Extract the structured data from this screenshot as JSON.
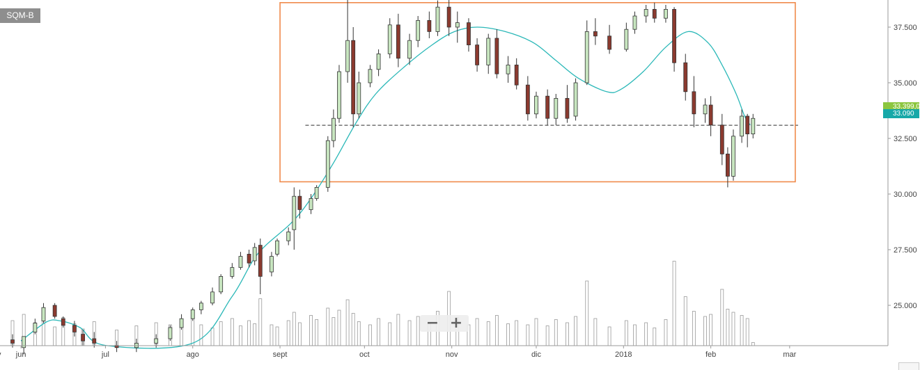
{
  "symbol": "SQM-B",
  "zoom": {
    "minus_label": "−",
    "plus_label": "+"
  },
  "price_tags": [
    {
      "label": "33.399,0",
      "color": "#8cc63f"
    },
    {
      "label": "33.090",
      "color": "#17a8a8"
    }
  ],
  "chart_data": {
    "type": "candlestick",
    "title": "",
    "x_ticks": [
      "jun",
      "jul",
      "ago",
      "sept",
      "oct",
      "nov",
      "dic",
      "2018",
      "feb",
      "mar"
    ],
    "x_range": [
      "2017-05-29",
      "2018-03-05"
    ],
    "y_ticks": [
      "37.500",
      "35.000",
      "32.500",
      "30.000",
      "27.500",
      "25.000"
    ],
    "y_tick_values": [
      37500,
      35000,
      32500,
      30000,
      27500,
      25000
    ],
    "ylim": [
      23000,
      38800
    ],
    "scale": "linear",
    "grid": false,
    "colors": {
      "up": "#c8e6c0",
      "down": "#8b3a2f",
      "wick": "#333333",
      "ma": "#2bb8b8",
      "box": "#f08a4b",
      "volume": "#999999"
    },
    "ma_line": [
      [
        "2017-06-01",
        23400
      ],
      [
        "2017-06-10",
        24250
      ],
      [
        "2017-06-15",
        24300
      ],
      [
        "2017-06-22",
        24000
      ],
      [
        "2017-07-01",
        23200
      ],
      [
        "2017-08-01",
        23300
      ],
      [
        "2017-08-15",
        25400
      ],
      [
        "2017-08-24",
        27300
      ],
      [
        "2017-09-05",
        28700
      ],
      [
        "2017-09-12",
        29800
      ],
      [
        "2017-09-20",
        31400
      ],
      [
        "2017-09-28",
        33200
      ],
      [
        "2017-10-05",
        34500
      ],
      [
        "2017-10-15",
        35700
      ],
      [
        "2017-10-25",
        36700
      ],
      [
        "2017-11-02",
        37300
      ],
      [
        "2017-11-10",
        37500
      ],
      [
        "2017-11-20",
        37300
      ],
      [
        "2017-11-30",
        36800
      ],
      [
        "2017-12-08",
        36000
      ],
      [
        "2017-12-16",
        35200
      ],
      [
        "2017-12-26",
        34600
      ],
      [
        "2017-12-31",
        34700
      ],
      [
        "2018-01-08",
        35500
      ],
      [
        "2018-01-16",
        36600
      ],
      [
        "2018-01-24",
        37300
      ],
      [
        "2018-01-31",
        36800
      ],
      [
        "2018-02-05",
        35800
      ],
      [
        "2018-02-10",
        34500
      ],
      [
        "2018-02-13",
        33500
      ],
      [
        "2018-02-15",
        33100
      ]
    ],
    "candles": [
      [
        "2017-05-29",
        23450,
        23700,
        23100,
        23300
      ],
      [
        "2017-06-02",
        23100,
        23600,
        22800,
        23600
      ],
      [
        "2017-06-06",
        23800,
        24400,
        23700,
        24200
      ],
      [
        "2017-06-09",
        24300,
        25100,
        24200,
        24900
      ],
      [
        "2017-06-13",
        25000,
        25100,
        24400,
        24500
      ],
      [
        "2017-06-16",
        24400,
        24500,
        24000,
        24100
      ],
      [
        "2017-06-20",
        24100,
        24300,
        23600,
        23800
      ],
      [
        "2017-06-23",
        23700,
        23900,
        23200,
        23400
      ],
      [
        "2017-06-27",
        23500,
        23800,
        23100,
        23300
      ],
      [
        "2017-07-05",
        23200,
        23400,
        22900,
        23100
      ],
      [
        "2017-07-12",
        23100,
        23500,
        22900,
        23300
      ],
      [
        "2017-07-19",
        23300,
        23700,
        23100,
        23500
      ],
      [
        "2017-07-24",
        23500,
        24100,
        23400,
        24000
      ],
      [
        "2017-07-28",
        24000,
        24600,
        23900,
        24400
      ],
      [
        "2017-08-01",
        24400,
        24900,
        24300,
        24800
      ],
      [
        "2017-08-04",
        24800,
        25200,
        24600,
        25100
      ],
      [
        "2017-08-08",
        25100,
        25800,
        25000,
        25600
      ],
      [
        "2017-08-11",
        25600,
        26400,
        25500,
        26300
      ],
      [
        "2017-08-15",
        26300,
        26900,
        26200,
        26700
      ],
      [
        "2017-08-18",
        26700,
        27400,
        26600,
        27200
      ],
      [
        "2017-08-21",
        27300,
        27500,
        26700,
        26900
      ],
      [
        "2017-08-23",
        27000,
        27800,
        26800,
        27600
      ],
      [
        "2017-08-25",
        27700,
        28000,
        25500,
        26300
      ],
      [
        "2017-08-29",
        26500,
        27400,
        26300,
        27200
      ],
      [
        "2017-08-31",
        27300,
        28000,
        27200,
        27900
      ],
      [
        "2017-09-04",
        27900,
        28500,
        27700,
        28300
      ],
      [
        "2017-09-06",
        28400,
        30300,
        27500,
        29900
      ],
      [
        "2017-09-08",
        29900,
        30200,
        28900,
        29300
      ],
      [
        "2017-09-12",
        29300,
        30000,
        29100,
        29800
      ],
      [
        "2017-09-14",
        29800,
        30400,
        29700,
        30300
      ],
      [
        "2017-09-18",
        30300,
        32600,
        30100,
        32400
      ],
      [
        "2017-09-20",
        32400,
        33800,
        32100,
        33400
      ],
      [
        "2017-09-22",
        33400,
        35800,
        33200,
        35500
      ],
      [
        "2017-09-25",
        35500,
        38900,
        35000,
        36900
      ],
      [
        "2017-09-27",
        36900,
        37500,
        33000,
        33600
      ],
      [
        "2017-09-29",
        33600,
        35500,
        33400,
        35000
      ],
      [
        "2017-10-03",
        35000,
        35800,
        34800,
        35600
      ],
      [
        "2017-10-06",
        35600,
        36500,
        35300,
        36300
      ],
      [
        "2017-10-10",
        36300,
        37900,
        36100,
        37600
      ],
      [
        "2017-10-13",
        37600,
        38100,
        35700,
        36100
      ],
      [
        "2017-10-17",
        36100,
        37200,
        35800,
        36900
      ],
      [
        "2017-10-20",
        36900,
        38000,
        36600,
        37800
      ],
      [
        "2017-10-24",
        37800,
        38200,
        37000,
        37300
      ],
      [
        "2017-10-27",
        37300,
        38700,
        37100,
        38400
      ],
      [
        "2017-10-31",
        38400,
        38900,
        37100,
        37500
      ],
      [
        "2017-11-03",
        37500,
        38200,
        36800,
        37700
      ],
      [
        "2017-11-07",
        37700,
        37900,
        36400,
        36700
      ],
      [
        "2017-11-10",
        36700,
        37000,
        35500,
        35800
      ],
      [
        "2017-11-14",
        35800,
        37200,
        35400,
        37000
      ],
      [
        "2017-11-17",
        37000,
        37400,
        35200,
        35400
      ],
      [
        "2017-11-21",
        35400,
        36200,
        35000,
        35800
      ],
      [
        "2017-11-24",
        35800,
        36100,
        34700,
        34900
      ],
      [
        "2017-11-28",
        34900,
        35300,
        33300,
        33600
      ],
      [
        "2017-12-01",
        33600,
        34600,
        33400,
        34400
      ],
      [
        "2017-12-05",
        34400,
        34700,
        33100,
        33400
      ],
      [
        "2017-12-08",
        33400,
        34500,
        33100,
        34300
      ],
      [
        "2017-12-12",
        34300,
        34900,
        33200,
        33400
      ],
      [
        "2017-12-15",
        33500,
        35200,
        33300,
        35000
      ],
      [
        "2017-12-19",
        35000,
        37800,
        34900,
        37300
      ],
      [
        "2017-12-22",
        37300,
        37900,
        36700,
        37100
      ],
      [
        "2017-12-27",
        37100,
        37600,
        36300,
        36500
      ],
      [
        "2018-01-02",
        36500,
        37700,
        36400,
        37400
      ],
      [
        "2018-01-05",
        37400,
        38200,
        37200,
        38000
      ],
      [
        "2018-01-09",
        38000,
        38500,
        37700,
        38300
      ],
      [
        "2018-01-12",
        38300,
        38600,
        37700,
        37900
      ],
      [
        "2018-01-16",
        37900,
        38500,
        37700,
        38300
      ],
      [
        "2018-01-19",
        38300,
        38400,
        35500,
        35900
      ],
      [
        "2018-01-23",
        35900,
        36300,
        34200,
        34600
      ],
      [
        "2018-01-26",
        34600,
        35300,
        33000,
        33600
      ],
      [
        "2018-01-30",
        33600,
        34300,
        33200,
        34000
      ],
      [
        "2018-02-01",
        34000,
        34400,
        32600,
        33100
      ],
      [
        "2018-02-05",
        33100,
        33600,
        31300,
        31800
      ],
      [
        "2018-02-07",
        31800,
        32100,
        30300,
        30800
      ],
      [
        "2018-02-09",
        30800,
        32900,
        30600,
        32600
      ],
      [
        "2018-02-12",
        32600,
        33800,
        32300,
        33500
      ],
      [
        "2018-02-14",
        33500,
        33600,
        32100,
        32700
      ],
      [
        "2018-02-16",
        32700,
        33600,
        32500,
        33400
      ]
    ],
    "volume_bars": [
      [
        "2017-05-29",
        2.4
      ],
      [
        "2017-06-02",
        3.0
      ],
      [
        "2017-06-06",
        2.2
      ],
      [
        "2017-06-09",
        2.6
      ],
      [
        "2017-06-13",
        1.8
      ],
      [
        "2017-06-16",
        2.7
      ],
      [
        "2017-06-20",
        2.1
      ],
      [
        "2017-06-23",
        1.6
      ],
      [
        "2017-06-27",
        2.3
      ],
      [
        "2017-07-05",
        1.5
      ],
      [
        "2017-07-12",
        1.9
      ],
      [
        "2017-07-19",
        2.2
      ],
      [
        "2017-07-24",
        2.0
      ],
      [
        "2017-07-28",
        2.5
      ],
      [
        "2017-08-01",
        2.8
      ],
      [
        "2017-08-04",
        2.0
      ],
      [
        "2017-08-08",
        1.7
      ],
      [
        "2017-08-11",
        2.3
      ],
      [
        "2017-08-15",
        2.6
      ],
      [
        "2017-08-18",
        1.9
      ],
      [
        "2017-08-21",
        2.4
      ],
      [
        "2017-08-23",
        2.1
      ],
      [
        "2017-08-25",
        4.5
      ],
      [
        "2017-08-29",
        2.0
      ],
      [
        "2017-08-31",
        1.8
      ],
      [
        "2017-09-04",
        2.4
      ],
      [
        "2017-09-06",
        3.2
      ],
      [
        "2017-09-08",
        2.2
      ],
      [
        "2017-09-12",
        2.9
      ],
      [
        "2017-09-14",
        2.5
      ],
      [
        "2017-09-18",
        3.6
      ],
      [
        "2017-09-20",
        2.7
      ],
      [
        "2017-09-22",
        3.4
      ],
      [
        "2017-09-25",
        4.4
      ],
      [
        "2017-09-27",
        3.1
      ],
      [
        "2017-09-29",
        2.3
      ],
      [
        "2017-10-03",
        2.0
      ],
      [
        "2017-10-06",
        2.6
      ],
      [
        "2017-10-10",
        2.2
      ],
      [
        "2017-10-13",
        3.0
      ],
      [
        "2017-10-17",
        2.4
      ],
      [
        "2017-10-20",
        2.8
      ],
      [
        "2017-10-24",
        2.1
      ],
      [
        "2017-10-27",
        3.3
      ],
      [
        "2017-10-31",
        5.2
      ],
      [
        "2017-11-03",
        2.7
      ],
      [
        "2017-11-07",
        2.0
      ],
      [
        "2017-11-10",
        2.6
      ],
      [
        "2017-11-14",
        2.3
      ],
      [
        "2017-11-17",
        2.9
      ],
      [
        "2017-11-21",
        2.1
      ],
      [
        "2017-11-24",
        2.4
      ],
      [
        "2017-11-28",
        2.0
      ],
      [
        "2017-12-01",
        2.6
      ],
      [
        "2017-12-05",
        1.9
      ],
      [
        "2017-12-08",
        2.5
      ],
      [
        "2017-12-12",
        2.2
      ],
      [
        "2017-12-15",
        2.8
      ],
      [
        "2017-12-19",
        6.2
      ],
      [
        "2017-12-22",
        2.6
      ],
      [
        "2017-12-27",
        1.8
      ],
      [
        "2018-01-02",
        2.4
      ],
      [
        "2018-01-05",
        2.0
      ],
      [
        "2018-01-09",
        2.2
      ],
      [
        "2018-01-12",
        1.7
      ],
      [
        "2018-01-16",
        2.5
      ],
      [
        "2018-01-19",
        8.1
      ],
      [
        "2018-01-23",
        4.7
      ],
      [
        "2018-01-26",
        3.3
      ],
      [
        "2018-01-30",
        2.8
      ],
      [
        "2018-02-01",
        3.0
      ],
      [
        "2018-02-05",
        5.4
      ],
      [
        "2018-02-07",
        3.5
      ],
      [
        "2018-02-09",
        3.2
      ],
      [
        "2018-02-12",
        2.9
      ],
      [
        "2018-02-14",
        2.6
      ],
      [
        "2018-02-16",
        0.3
      ]
    ],
    "annotations": {
      "rectangle": {
        "x_start": "2017-09-01",
        "x_end": "2018-03-03",
        "y_low": 30550,
        "y_high": 38600
      },
      "dashed_line": {
        "x_start": "2017-09-10",
        "x_end": "2018-03-04",
        "y": 33090
      }
    }
  }
}
